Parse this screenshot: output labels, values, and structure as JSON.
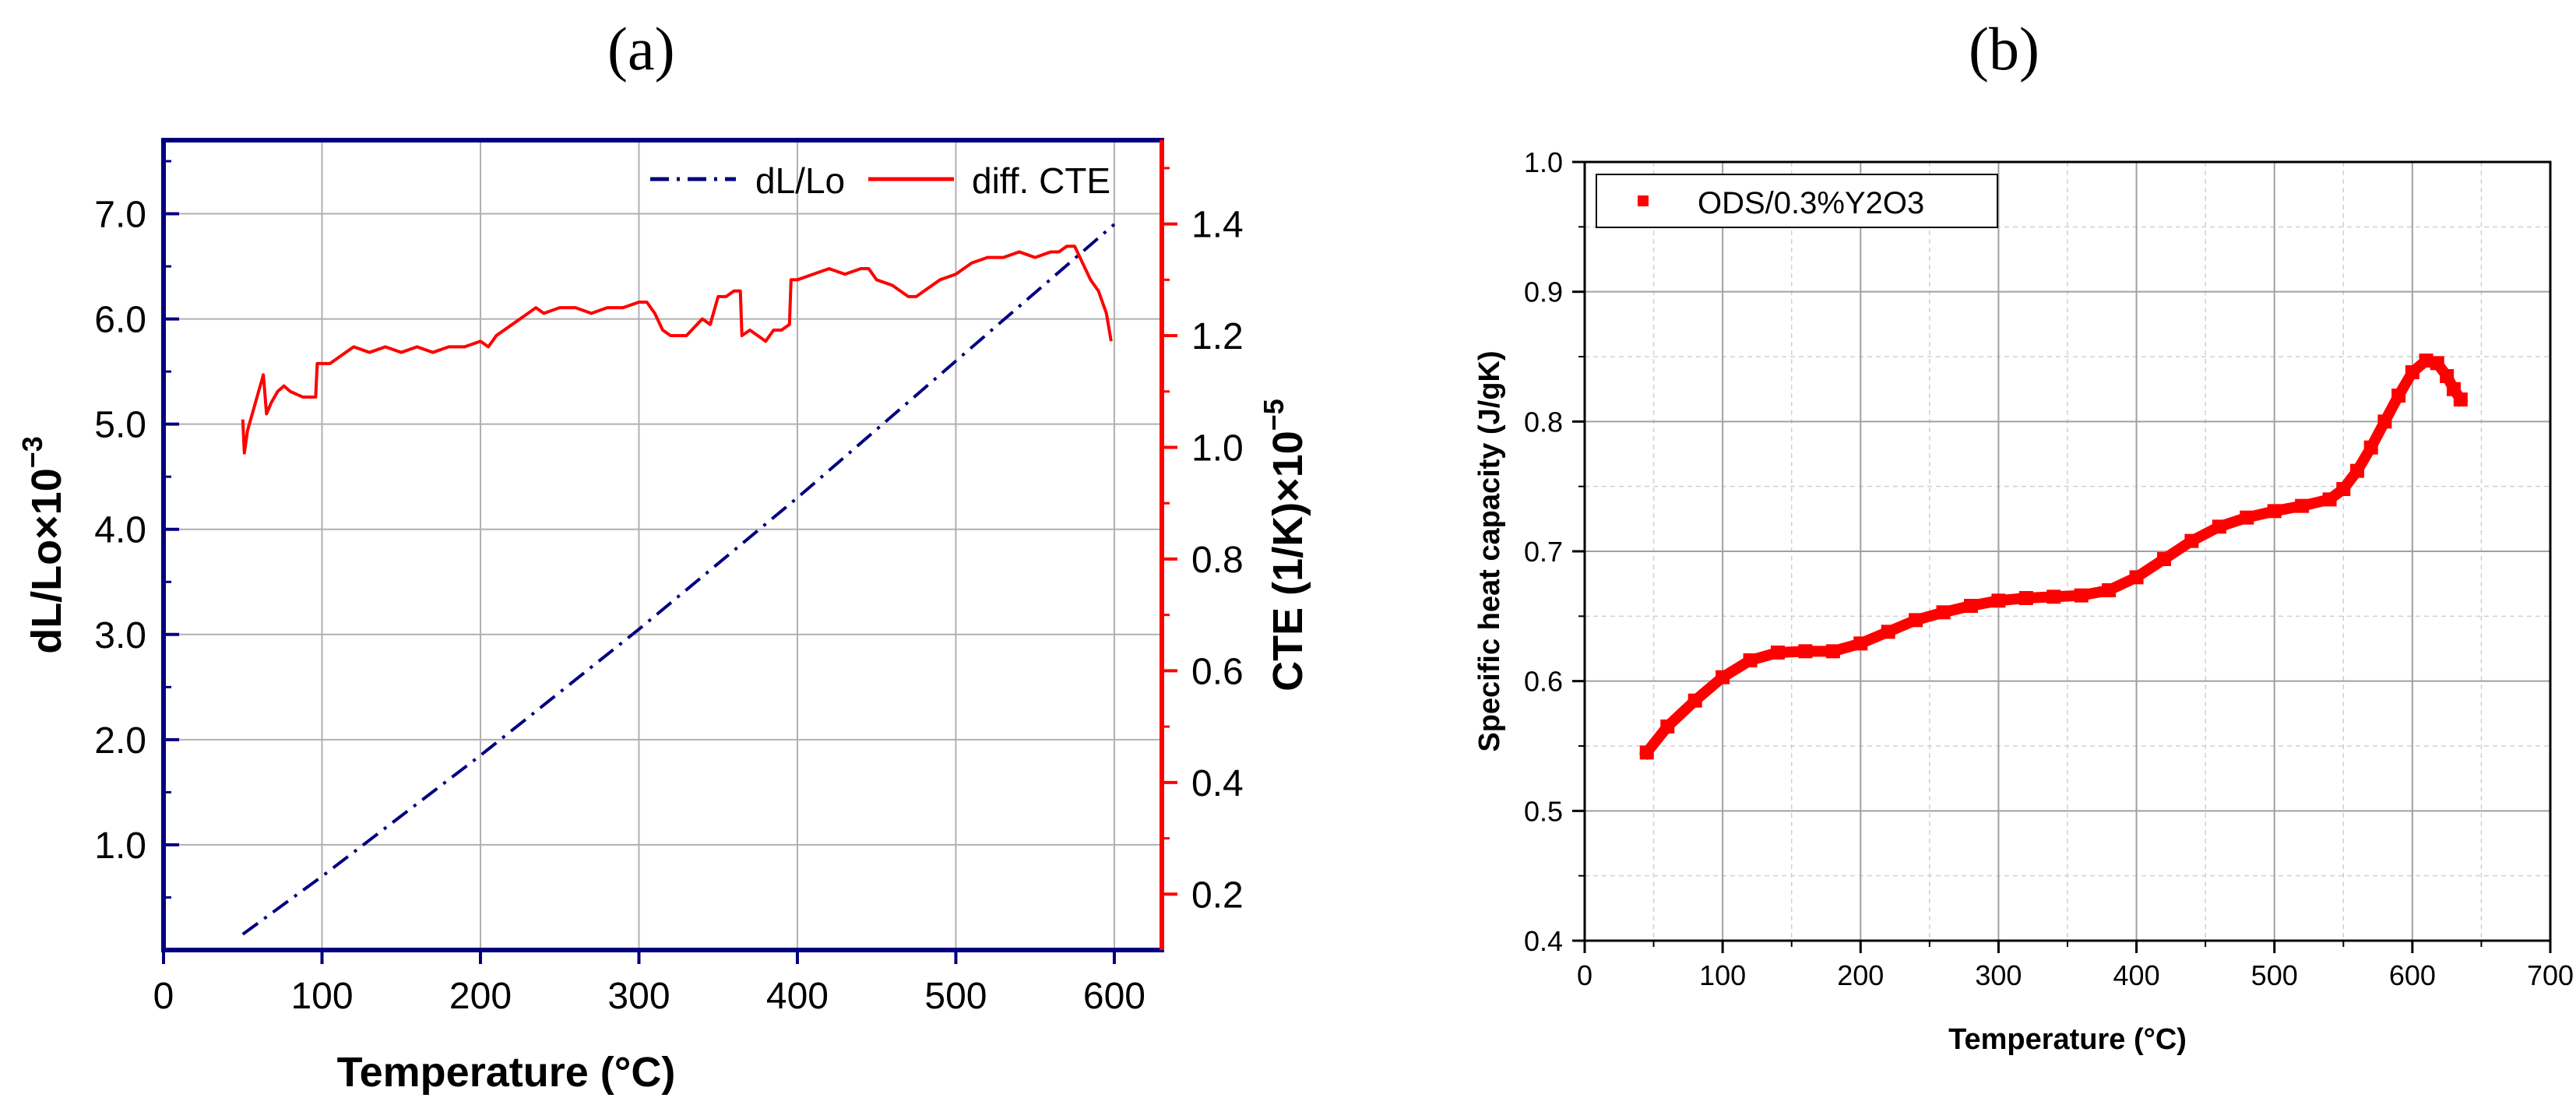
{
  "panels": {
    "a": {
      "label": "(a)"
    },
    "b": {
      "label": "(b)"
    }
  },
  "chart_data": [
    {
      "id": "a",
      "type": "line",
      "title": "",
      "xlabel": "Temperature (°C)",
      "ylabel_left": {
        "base": "dL/Lo×10",
        "exp": "−3"
      },
      "ylabel_right": {
        "base": "CTE (1/K)×10",
        "exp": "−5"
      },
      "xlim": [
        0,
        630
      ],
      "ylim_left": [
        0,
        7.7
      ],
      "ylim_right": [
        0.1,
        1.55
      ],
      "x_ticks": [
        "0",
        "100",
        "200",
        "300",
        "400",
        "500",
        "600"
      ],
      "y_left_ticks": [
        "1.0",
        "2.0",
        "3.0",
        "4.0",
        "5.0",
        "6.0",
        "7.0"
      ],
      "y_right_ticks": [
        "0.2",
        "0.4",
        "0.6",
        "0.8",
        "1.0",
        "1.2",
        "1.4"
      ],
      "grid": true,
      "legend_position": "top-right",
      "colors": {
        "left_axis": "#00007f",
        "right_axis": "#ff0000",
        "dl": "#00007f",
        "cte": "#ff0000",
        "grid": "#b0b0b0"
      },
      "series": [
        {
          "name": "dL/Lo",
          "axis": "left",
          "style": "dash-dot",
          "x": [
            50,
            100,
            200,
            300,
            400,
            500,
            600
          ],
          "y": [
            0.15,
            0.7,
            1.85,
            3.05,
            4.3,
            5.6,
            6.9
          ]
        },
        {
          "name": "diff. CTE",
          "axis": "right",
          "style": "solid",
          "x": [
            50,
            51,
            53,
            55,
            57,
            60,
            63,
            65,
            68,
            72,
            76,
            80,
            88,
            96,
            97,
            100,
            105,
            110,
            115,
            120,
            130,
            140,
            150,
            160,
            170,
            180,
            190,
            200,
            205,
            210,
            220,
            230,
            235,
            240,
            250,
            260,
            270,
            280,
            290,
            300,
            305,
            310,
            315,
            320,
            330,
            340,
            345,
            350,
            355,
            360,
            364,
            365,
            370,
            375,
            380,
            385,
            390,
            395,
            396,
            400,
            410,
            420,
            430,
            440,
            445,
            450,
            460,
            470,
            475,
            480,
            490,
            500,
            510,
            520,
            530,
            540,
            550,
            560,
            565,
            570,
            575,
            580,
            585,
            590,
            595,
            598
          ],
          "y": [
            1.05,
            0.99,
            1.03,
            1.05,
            1.07,
            1.1,
            1.13,
            1.06,
            1.08,
            1.1,
            1.11,
            1.1,
            1.09,
            1.09,
            1.15,
            1.15,
            1.15,
            1.16,
            1.17,
            1.18,
            1.17,
            1.18,
            1.17,
            1.18,
            1.17,
            1.18,
            1.18,
            1.19,
            1.18,
            1.2,
            1.22,
            1.24,
            1.25,
            1.24,
            1.25,
            1.25,
            1.24,
            1.25,
            1.25,
            1.26,
            1.26,
            1.24,
            1.21,
            1.2,
            1.2,
            1.23,
            1.22,
            1.27,
            1.27,
            1.28,
            1.28,
            1.2,
            1.21,
            1.2,
            1.19,
            1.21,
            1.21,
            1.22,
            1.3,
            1.3,
            1.31,
            1.32,
            1.31,
            1.32,
            1.32,
            1.3,
            1.29,
            1.27,
            1.27,
            1.28,
            1.3,
            1.31,
            1.33,
            1.34,
            1.34,
            1.35,
            1.34,
            1.35,
            1.35,
            1.36,
            1.36,
            1.33,
            1.3,
            1.28,
            1.24,
            1.19
          ]
        }
      ]
    },
    {
      "id": "b",
      "type": "scatter",
      "title": "",
      "xlabel": "Temperature (°C)",
      "ylabel": "Specific heat capacity (J/gK)",
      "xlim": [
        0,
        700
      ],
      "ylim": [
        0.4,
        1.0
      ],
      "x_ticks": [
        "0",
        "100",
        "200",
        "300",
        "400",
        "500",
        "600",
        "700"
      ],
      "y_ticks": [
        "0.4",
        "0.5",
        "0.6",
        "0.7",
        "0.8",
        "0.9",
        "1.0"
      ],
      "grid": true,
      "legend_position": "top-left",
      "colors": {
        "series": "#ff0000",
        "grid": "#a0a0a0"
      },
      "series": [
        {
          "name": "ODS/0.3%Y2O3",
          "x": [
            45,
            60,
            80,
            100,
            120,
            140,
            160,
            180,
            200,
            220,
            240,
            260,
            280,
            300,
            320,
            340,
            360,
            380,
            400,
            420,
            440,
            460,
            480,
            500,
            520,
            540,
            550,
            560,
            570,
            580,
            590,
            600,
            610,
            618,
            625,
            630,
            635
          ],
          "y": [
            0.545,
            0.565,
            0.585,
            0.603,
            0.616,
            0.622,
            0.623,
            0.623,
            0.629,
            0.638,
            0.647,
            0.653,
            0.658,
            0.662,
            0.664,
            0.665,
            0.666,
            0.67,
            0.68,
            0.694,
            0.708,
            0.719,
            0.726,
            0.731,
            0.735,
            0.74,
            0.748,
            0.762,
            0.78,
            0.8,
            0.82,
            0.838,
            0.847,
            0.845,
            0.835,
            0.825,
            0.817
          ]
        }
      ]
    }
  ]
}
